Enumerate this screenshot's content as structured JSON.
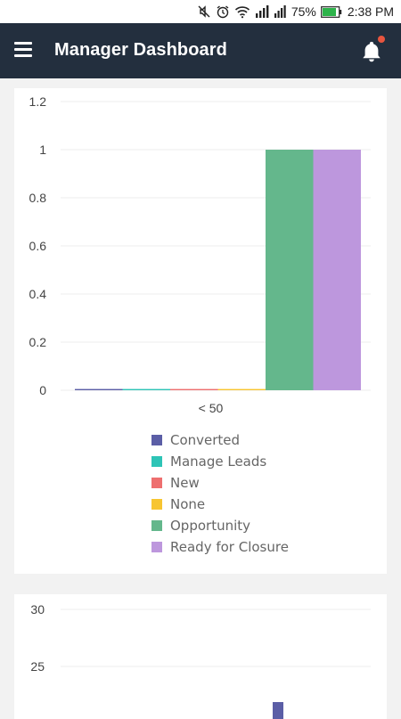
{
  "status_bar": {
    "battery": "75%",
    "time": "2:38 PM"
  },
  "header": {
    "title": "Manager Dashboard",
    "menu_icon": "hamburger-menu-icon",
    "notification_icon": "bell-icon",
    "notification_badge_color": "#e8553f"
  },
  "colors": {
    "appbar": "#232f3e",
    "background": "#f2f2f2"
  },
  "chart_data": [
    {
      "type": "bar",
      "categories": [
        "< 50"
      ],
      "series": [
        {
          "name": "Converted",
          "values": [
            0
          ],
          "color": "#5b5ea6"
        },
        {
          "name": "Manage Leads",
          "values": [
            0
          ],
          "color": "#2ec4b6"
        },
        {
          "name": "New",
          "values": [
            0
          ],
          "color": "#ee6f6f"
        },
        {
          "name": "None",
          "values": [
            0
          ],
          "color": "#f7c531"
        },
        {
          "name": "Opportunity",
          "values": [
            1
          ],
          "color": "#64b78c"
        },
        {
          "name": "Ready for Closure",
          "values": [
            1
          ],
          "color": "#bd97dd"
        }
      ],
      "ylim": [
        0,
        1.2
      ],
      "yticks": [
        "0",
        "0.2",
        "0.4",
        "0.6",
        "0.8",
        "1",
        "1.2"
      ],
      "grid": true,
      "legend": "bottom"
    },
    {
      "type": "bar",
      "yticks_visible": [
        "25",
        "30"
      ],
      "ylim_visible": [
        25,
        30
      ],
      "series": [
        {
          "values": [
            22
          ],
          "color": "#5b5ea6"
        }
      ],
      "grid": true
    }
  ]
}
